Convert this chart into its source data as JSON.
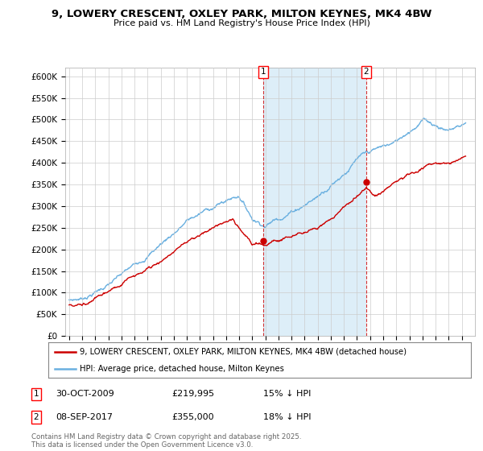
{
  "title1": "9, LOWERY CRESCENT, OXLEY PARK, MILTON KEYNES, MK4 4BW",
  "title2": "Price paid vs. HM Land Registry's House Price Index (HPI)",
  "ylim": [
    0,
    620000
  ],
  "yticks": [
    0,
    50000,
    100000,
    150000,
    200000,
    250000,
    300000,
    350000,
    400000,
    450000,
    500000,
    550000,
    600000
  ],
  "ytick_labels": [
    "£0",
    "£50K",
    "£100K",
    "£150K",
    "£200K",
    "£250K",
    "£300K",
    "£350K",
    "£400K",
    "£450K",
    "£500K",
    "£550K",
    "£600K"
  ],
  "hpi_color": "#6ab0e0",
  "price_color": "#cc0000",
  "shade_color": "#ddeef8",
  "marker1_year": 2009.83,
  "marker2_year": 2017.69,
  "marker1_price": 219995,
  "marker2_price": 355000,
  "annotation1": [
    "1",
    "30-OCT-2009",
    "£219,995",
    "15% ↓ HPI"
  ],
  "annotation2": [
    "2",
    "08-SEP-2017",
    "£355,000",
    "18% ↓ HPI"
  ],
  "legend1": "9, LOWERY CRESCENT, OXLEY PARK, MILTON KEYNES, MK4 4BW (detached house)",
  "legend2": "HPI: Average price, detached house, Milton Keynes",
  "footnote": "Contains HM Land Registry data © Crown copyright and database right 2025.\nThis data is licensed under the Open Government Licence v3.0.",
  "background_color": "#ffffff",
  "grid_color": "#cccccc"
}
